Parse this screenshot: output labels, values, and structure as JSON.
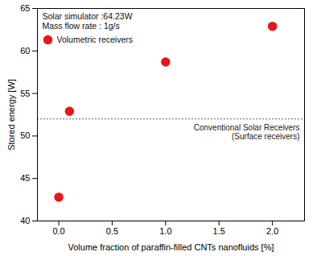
{
  "chart_data": {
    "type": "scatter",
    "x_label": "Volume fraction of paraffin-filled CNTs nanofluids [%]",
    "y_label": "Stored energy [W]",
    "series": [
      {
        "name": "Volumetric receivers",
        "color": "#e8161b",
        "marker": "circle",
        "x": [
          0,
          0.1,
          1,
          2
        ],
        "values": [
          42.8,
          52.9,
          58.7,
          62.9
        ]
      }
    ],
    "xlim": [
      -0.2,
      2.3
    ],
    "xticks": [
      {
        "value": 0,
        "label": "0.0"
      },
      0.5,
      {
        "value": 1,
        "label": "1.0"
      },
      1.5,
      {
        "value": 2,
        "label": "2.0"
      }
    ],
    "ylim": [
      40,
      65
    ],
    "yticks": [
      40,
      45,
      50,
      55,
      60,
      65
    ],
    "annotations": [
      "Solar simulator :64.23W",
      "Mass flow rate : 1g/s"
    ],
    "reference_line": {
      "value": 52,
      "label": [
        "Conventional Solar Receivers",
        "(Surface receivers)"
      ],
      "line_style": "dotted",
      "color": "#666666"
    },
    "legend": "top-left",
    "grid": false
  }
}
